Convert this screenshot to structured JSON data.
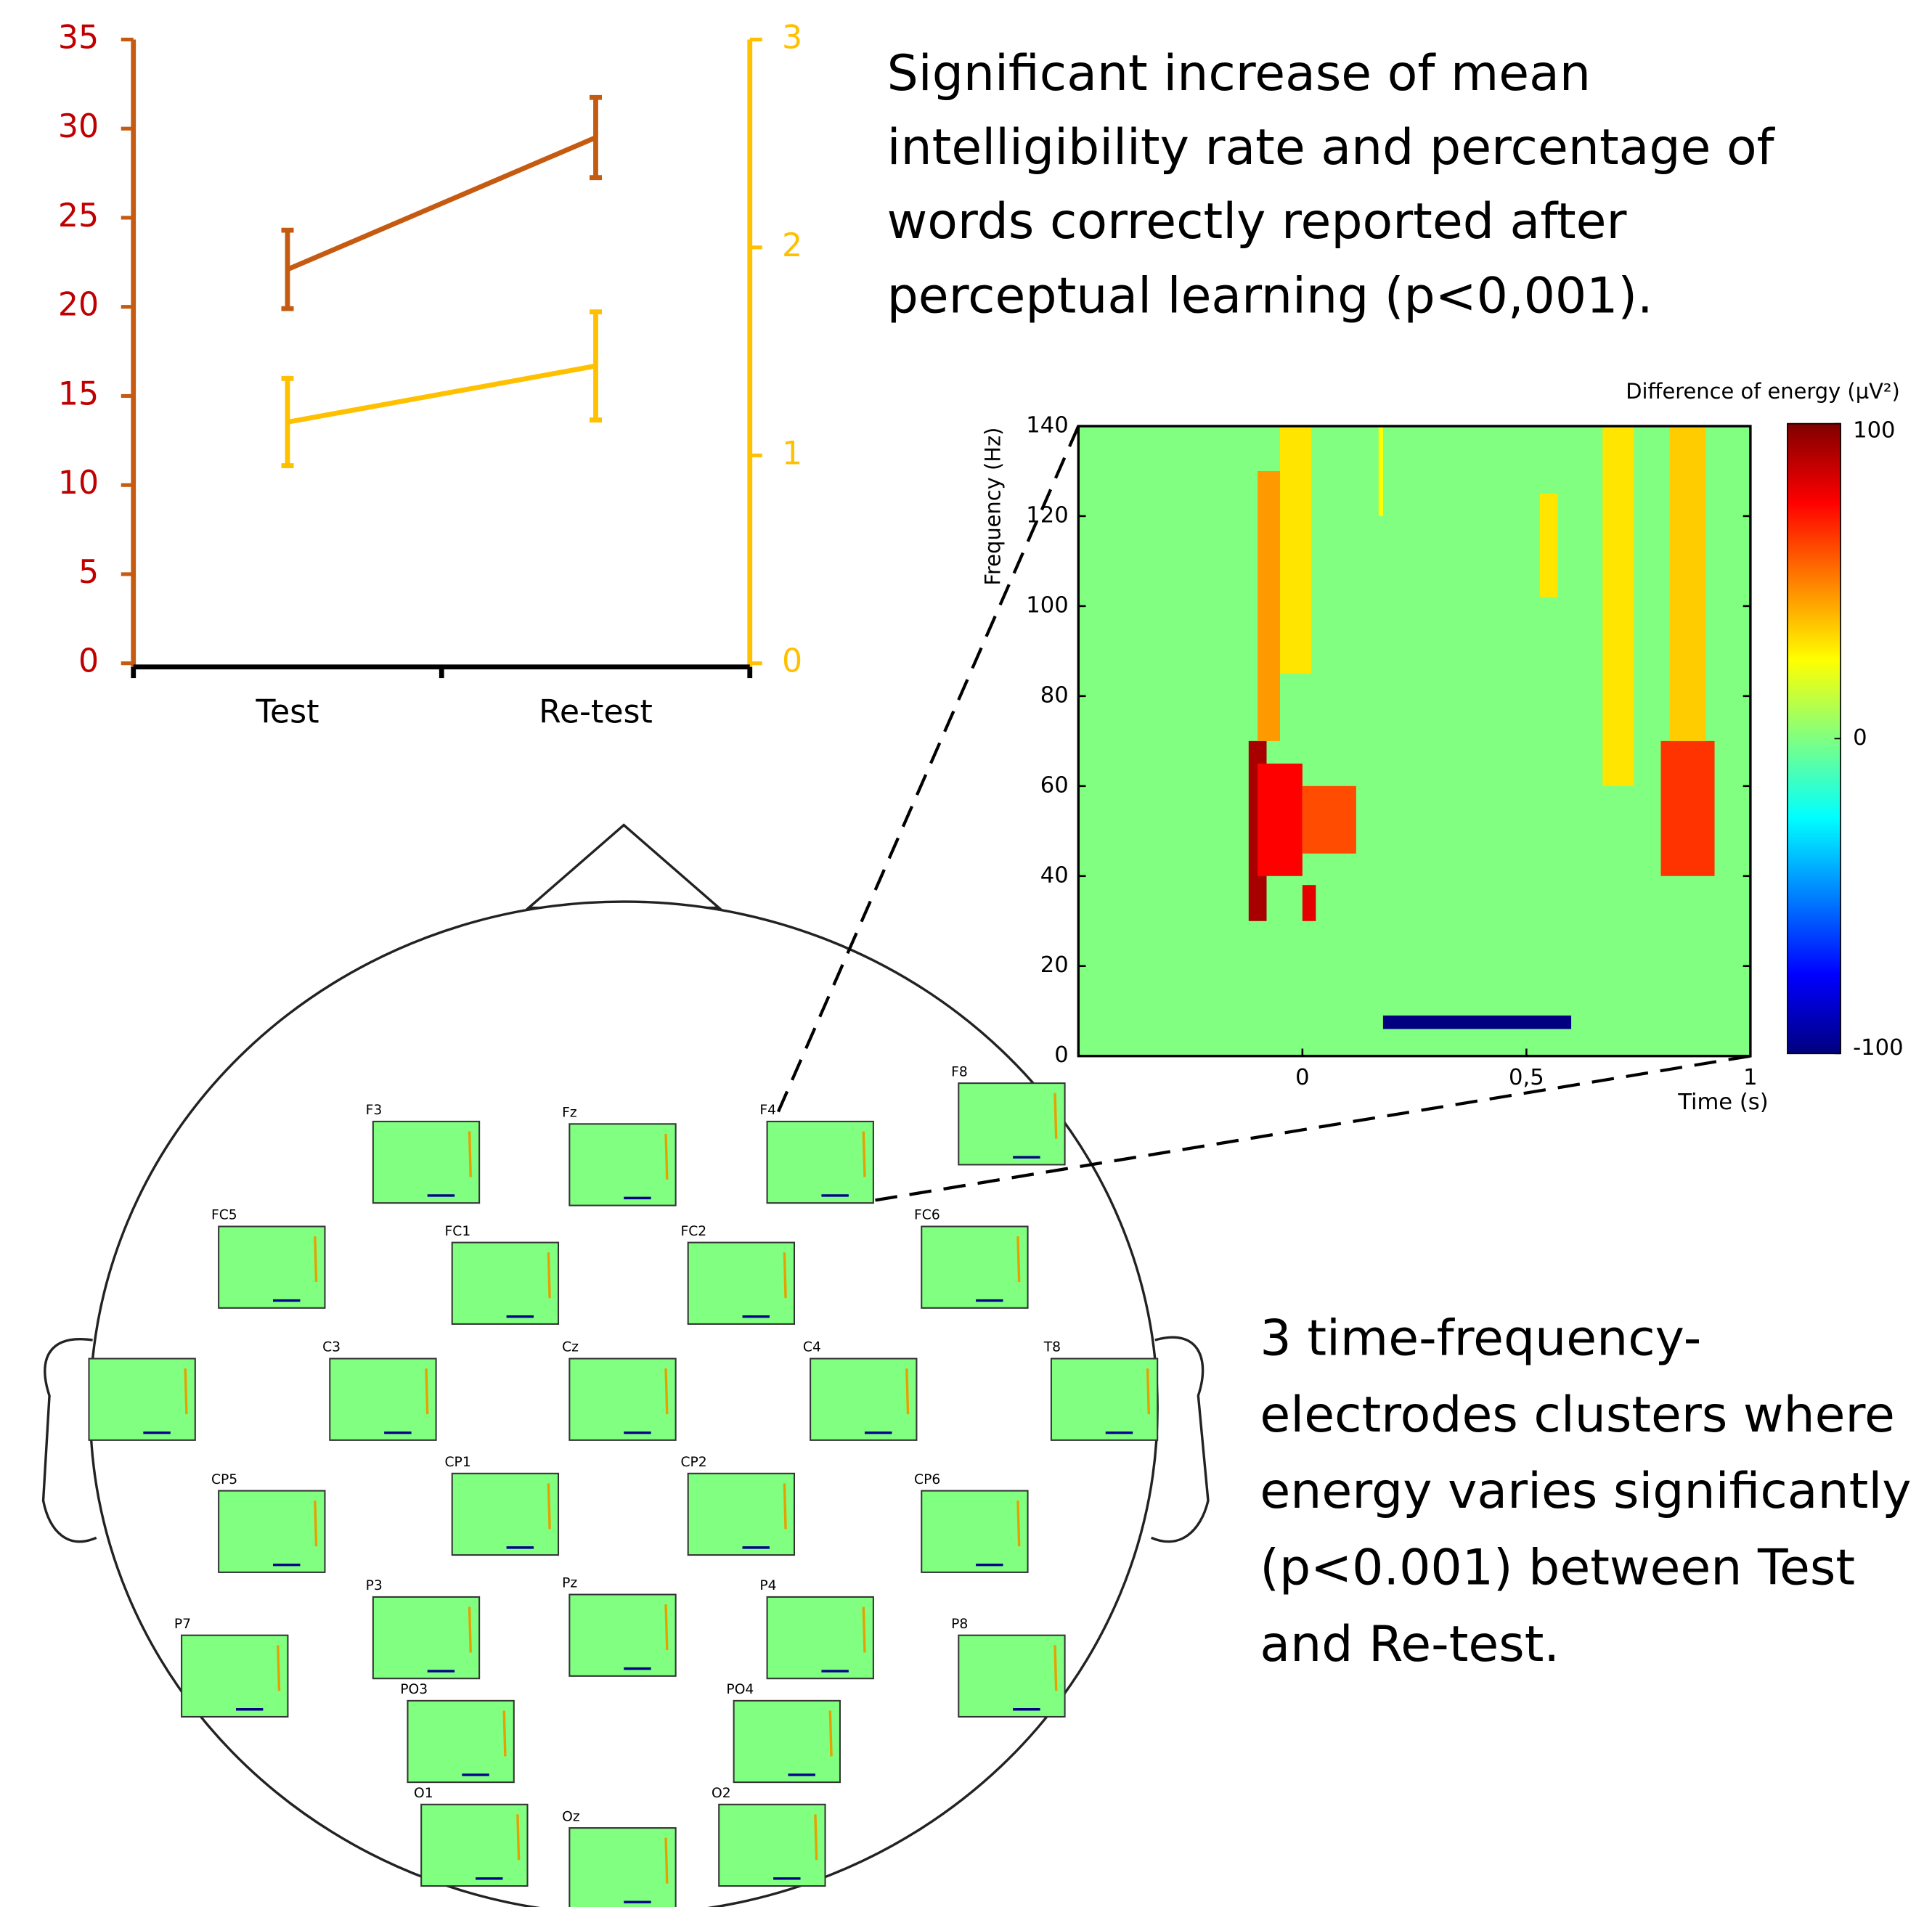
{
  "chart_data": [
    {
      "type": "line",
      "categories": [
        "Test",
        "Re-test"
      ],
      "series": [
        {
          "color": "#c55a11",
          "values": [
            22.1,
            29.5
          ],
          "errors": [
            2.2,
            2.25
          ]
        },
        {
          "color": "#ffc000",
          "axis": "y2",
          "values": [
            1.16,
            1.43
          ],
          "errors": [
            0.21,
            0.26
          ]
        }
      ],
      "ylim": [
        0,
        35
      ],
      "yticks": [
        0,
        5,
        10,
        15,
        20,
        25,
        30,
        35
      ],
      "ycolor": "#c00000",
      "y2lim": [
        0,
        3
      ],
      "y2ticks": [
        0,
        1,
        2,
        3
      ],
      "y2color": "#ffc000"
    },
    {
      "type": "heatmap",
      "ylabel": "Frequency (Hz)",
      "xlabel": "Time (s)",
      "xlim": [
        -0.5,
        1
      ],
      "xticks": [
        0,
        {
          "value": 0.5,
          "label": "0,5"
        },
        1
      ],
      "ylim": [
        0,
        140
      ],
      "yticks": [
        0,
        20,
        40,
        60,
        80,
        100,
        120,
        140
      ],
      "colorbar": {
        "label": "Difference of energy (µV²)",
        "lim": [
          -100,
          100
        ],
        "ticks": [
          -100,
          0,
          100
        ]
      },
      "spots": [
        {
          "t": [
            -0.12,
            -0.08
          ],
          "f": [
            30,
            70
          ],
          "value": 92
        },
        {
          "t": [
            -0.1,
            0.0
          ],
          "f": [
            40,
            65
          ],
          "value": 75
        },
        {
          "t": [
            -0.1,
            -0.05
          ],
          "f": [
            70,
            130
          ],
          "value": 45
        },
        {
          "t": [
            -0.05,
            0.02
          ],
          "f": [
            85,
            140
          ],
          "value": 30
        },
        {
          "t": [
            0.0,
            0.12
          ],
          "f": [
            45,
            60
          ],
          "value": 60
        },
        {
          "t": [
            0.0,
            0.03
          ],
          "f": [
            30,
            38
          ],
          "value": 80
        },
        {
          "t": [
            0.17,
            0.18
          ],
          "f": [
            120,
            140
          ],
          "value": 25
        },
        {
          "t": [
            0.53,
            0.57
          ],
          "f": [
            102,
            125
          ],
          "value": 30
        },
        {
          "t": [
            0.67,
            0.74
          ],
          "f": [
            60,
            140
          ],
          "value": 30
        },
        {
          "t": [
            0.8,
            0.92
          ],
          "f": [
            40,
            70
          ],
          "value": 65
        },
        {
          "t": [
            0.82,
            0.9
          ],
          "f": [
            70,
            140
          ],
          "value": 35
        },
        {
          "t": [
            0.18,
            0.6
          ],
          "f": [
            6,
            9
          ],
          "value": -100
        }
      ]
    }
  ],
  "annotations": [
    [
      "Significant increase of mean",
      "intelligibility rate and  percentage of",
      "words correctly reported after",
      "perceptual learning (p<0,001)."
    ],
    [
      "3 time-frequency-",
      "electrodes clusters where",
      "energy varies significantly",
      "(p<0.001) between Test",
      "and Re-test."
    ]
  ],
  "head": {
    "electrodes": [
      "F3",
      "Fz",
      "F4",
      "F8",
      "FC5",
      "FC1",
      "FC2",
      "FC6",
      null,
      "C3",
      "Cz",
      "C4",
      "T8",
      "CP5",
      "CP1",
      "CP2",
      "CP6",
      "P7",
      "P3",
      "Pz",
      "P4",
      "P8",
      "PO3",
      "PO4",
      "O1",
      "Oz",
      "O2"
    ]
  }
}
